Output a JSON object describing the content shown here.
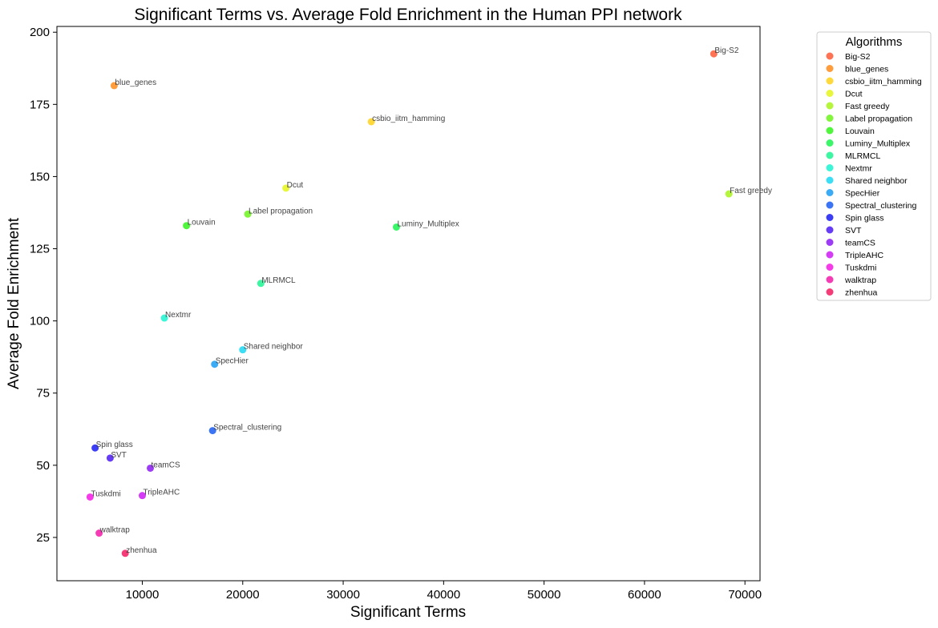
{
  "chart_data": {
    "type": "scatter",
    "title": "Significant Terms vs. Average Fold Enrichment in the Human PPI network",
    "xlabel": "Significant Terms",
    "ylabel": "Average Fold Enrichment",
    "xlim": [
      1500,
      71500
    ],
    "ylim": [
      10,
      202
    ],
    "xticks": [
      10000,
      20000,
      30000,
      40000,
      50000,
      60000,
      70000
    ],
    "yticks": [
      25,
      50,
      75,
      100,
      125,
      150,
      175,
      200
    ],
    "grid": false,
    "legend": {
      "title": "Algorithms",
      "placement": "outside-top-right"
    },
    "points": [
      {
        "name": "Big-S2",
        "x": 66900,
        "y": 192.5,
        "color": "#ff5a36"
      },
      {
        "name": "blue_genes",
        "x": 7200,
        "y": 181.5,
        "color": "#ff8c1a"
      },
      {
        "name": "csbio_iitm_hamming",
        "x": 32800,
        "y": 169,
        "color": "#ffd21a"
      },
      {
        "name": "Dcut",
        "x": 24300,
        "y": 146,
        "color": "#e4f51a"
      },
      {
        "name": "Fast greedy",
        "x": 68400,
        "y": 144,
        "color": "#a8f51a"
      },
      {
        "name": "Label propagation",
        "x": 20500,
        "y": 137,
        "color": "#6cf51a"
      },
      {
        "name": "Louvain",
        "x": 14400,
        "y": 133,
        "color": "#30f51a"
      },
      {
        "name": "Luminy_Multiplex",
        "x": 35300,
        "y": 132.5,
        "color": "#1af550"
      },
      {
        "name": "MLRMCL",
        "x": 21800,
        "y": 113,
        "color": "#1af590"
      },
      {
        "name": "Nextmr",
        "x": 12200,
        "y": 101,
        "color": "#1af5d0"
      },
      {
        "name": "Shared neighbor",
        "x": 20000,
        "y": 90,
        "color": "#1ad8f5"
      },
      {
        "name": "SpecHier",
        "x": 17200,
        "y": 85,
        "color": "#1a9cf5"
      },
      {
        "name": "Spectral_clustering",
        "x": 17000,
        "y": 62,
        "color": "#1a5cf5"
      },
      {
        "name": "Spin glass",
        "x": 5300,
        "y": 56,
        "color": "#1a1cf5"
      },
      {
        "name": "SVT",
        "x": 6800,
        "y": 52.5,
        "color": "#4c1af5"
      },
      {
        "name": "teamCS",
        "x": 10800,
        "y": 49,
        "color": "#8c1af5"
      },
      {
        "name": "TripleAHC",
        "x": 10000,
        "y": 39.5,
        "color": "#cc1af5"
      },
      {
        "name": "Tuskdmi",
        "x": 4800,
        "y": 39,
        "color": "#f51ae4"
      },
      {
        "name": "walktrap",
        "x": 5700,
        "y": 26.5,
        "color": "#f51aa8"
      },
      {
        "name": "zhenhua",
        "x": 8300,
        "y": 19.5,
        "color": "#f51a60"
      }
    ]
  }
}
